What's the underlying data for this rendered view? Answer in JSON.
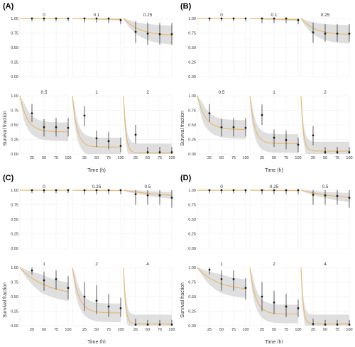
{
  "colors": {
    "panel_bg": "#ffffff",
    "grid": "#ebebeb",
    "band": "#d9d9d9",
    "line": "#e6b86a",
    "point": "#1a1a1a",
    "text": "#333333",
    "facet_label": "#333333"
  },
  "labels": {
    "y_axis": "Survival fraction",
    "x_axis": "Time (h)"
  },
  "chart_data": [
    {
      "panel": "(A)",
      "type": "line",
      "xlabel": "Time (h)",
      "ylabel": "Survival fraction",
      "xlim": [
        0,
        100
      ],
      "ylim": [
        0,
        1
      ],
      "yticks": [
        "0.00",
        "0.25",
        "0.50",
        "0.75",
        "1.00"
      ],
      "xticks": [
        "25",
        "50",
        "75",
        "100"
      ],
      "facets": [
        {
          "label": "0",
          "x": [
            25,
            50,
            75,
            100
          ],
          "y": [
            1.0,
            1.0,
            1.0,
            1.0
          ],
          "lo": [
            0.95,
            0.95,
            0.95,
            0.95
          ],
          "hi": [
            1.0,
            1.0,
            1.0,
            1.0
          ],
          "rate": 0.0,
          "floor": 1.0
        },
        {
          "label": "0.1",
          "x": [
            25,
            50,
            75,
            100
          ],
          "y": [
            1.0,
            1.0,
            1.0,
            0.97
          ],
          "lo": [
            0.93,
            0.93,
            0.92,
            0.9
          ],
          "hi": [
            1.0,
            1.0,
            1.0,
            1.0
          ],
          "rate": 0.0006,
          "floor": 0.9
        },
        {
          "label": "0.25",
          "x": [
            25,
            50,
            75,
            100
          ],
          "y": [
            0.77,
            0.74,
            0.73,
            0.73
          ],
          "lo": [
            0.58,
            0.55,
            0.55,
            0.55
          ],
          "hi": [
            0.95,
            0.93,
            0.92,
            0.92
          ],
          "rate": 0.01,
          "floor": 0.7
        },
        {
          "label": "0.5",
          "x": [
            25,
            50,
            75,
            100
          ],
          "y": [
            0.7,
            0.46,
            0.46,
            0.45
          ],
          "lo": [
            0.55,
            0.3,
            0.3,
            0.3
          ],
          "hi": [
            0.86,
            0.6,
            0.62,
            0.62
          ],
          "rate": 0.022,
          "floor": 0.38
        },
        {
          "label": "1",
          "x": [
            25,
            50,
            75,
            100
          ],
          "y": [
            0.66,
            0.27,
            0.22,
            0.14
          ],
          "lo": [
            0.48,
            0.12,
            0.08,
            0.03
          ],
          "hi": [
            0.82,
            0.4,
            0.38,
            0.28
          ],
          "rate": 0.035,
          "floor": 0.12
        },
        {
          "label": "2",
          "x": [
            25,
            50,
            75,
            100
          ],
          "y": [
            0.33,
            0.03,
            0.03,
            0.03
          ],
          "lo": [
            0.18,
            0.0,
            0.0,
            0.0
          ],
          "hi": [
            0.5,
            0.12,
            0.12,
            0.12
          ],
          "rate": 0.07,
          "floor": 0.02
        }
      ]
    },
    {
      "panel": "(B)",
      "type": "line",
      "xlabel": "Time (h)",
      "ylabel": "Survival fraction",
      "xlim": [
        0,
        100
      ],
      "ylim": [
        0,
        1
      ],
      "yticks": [
        "0.00",
        "0.25",
        "0.50",
        "0.75",
        "1.00"
      ],
      "xticks": [
        "25",
        "50",
        "75",
        "100"
      ],
      "facets": [
        {
          "label": "0",
          "x": [
            25,
            50,
            75,
            100
          ],
          "y": [
            1.0,
            1.0,
            1.0,
            1.0
          ],
          "lo": [
            0.95,
            0.95,
            0.95,
            0.95
          ],
          "hi": [
            1.0,
            1.0,
            1.0,
            1.0
          ],
          "rate": 0.0,
          "floor": 1.0
        },
        {
          "label": "0.1",
          "x": [
            25,
            50,
            75,
            100
          ],
          "y": [
            1.0,
            1.0,
            1.0,
            0.97
          ],
          "lo": [
            0.92,
            0.92,
            0.92,
            0.9
          ],
          "hi": [
            1.0,
            1.0,
            1.0,
            1.0
          ],
          "rate": 0.0008,
          "floor": 0.9
        },
        {
          "label": "0.25",
          "x": [
            25,
            50,
            75,
            100
          ],
          "y": [
            0.76,
            0.74,
            0.74,
            0.74
          ],
          "lo": [
            0.58,
            0.6,
            0.6,
            0.6
          ],
          "hi": [
            0.93,
            0.9,
            0.9,
            0.9
          ],
          "rate": 0.012,
          "floor": 0.72
        },
        {
          "label": "0.5",
          "x": [
            25,
            50,
            75,
            100
          ],
          "y": [
            0.7,
            0.46,
            0.46,
            0.45
          ],
          "lo": [
            0.55,
            0.3,
            0.3,
            0.3
          ],
          "hi": [
            0.86,
            0.6,
            0.62,
            0.62
          ],
          "rate": 0.02,
          "floor": 0.42
        },
        {
          "label": "1",
          "x": [
            25,
            50,
            75,
            100
          ],
          "y": [
            0.67,
            0.28,
            0.24,
            0.16
          ],
          "lo": [
            0.5,
            0.12,
            0.08,
            0.03
          ],
          "hi": [
            0.85,
            0.42,
            0.4,
            0.28
          ],
          "rate": 0.035,
          "floor": 0.18
        },
        {
          "label": "2",
          "x": [
            25,
            50,
            75,
            100
          ],
          "y": [
            0.32,
            0.03,
            0.03,
            0.03
          ],
          "lo": [
            0.15,
            0.0,
            0.0,
            0.0
          ],
          "hi": [
            0.48,
            0.12,
            0.12,
            0.12
          ],
          "rate": 0.07,
          "floor": 0.05
        }
      ]
    },
    {
      "panel": "(C)",
      "type": "line",
      "xlabel": "Time (h)",
      "ylabel": "Survival fraction",
      "xlim": [
        0,
        100
      ],
      "ylim": [
        0,
        1
      ],
      "yticks": [
        "0.00",
        "0.25",
        "0.50",
        "0.75",
        "1.00"
      ],
      "xticks": [
        "25",
        "50",
        "75",
        "100"
      ],
      "facets": [
        {
          "label": "0",
          "x": [
            25,
            50,
            75,
            100
          ],
          "y": [
            1.0,
            1.0,
            1.0,
            1.0
          ],
          "lo": [
            0.95,
            0.95,
            0.95,
            0.95
          ],
          "hi": [
            1.0,
            1.0,
            1.0,
            1.0
          ],
          "rate": 0.0,
          "floor": 1.0
        },
        {
          "label": "0.25",
          "x": [
            25,
            50,
            75,
            100
          ],
          "y": [
            1.0,
            1.0,
            1.0,
            1.0
          ],
          "lo": [
            0.93,
            0.93,
            0.93,
            0.93
          ],
          "hi": [
            1.0,
            1.0,
            1.0,
            1.0
          ],
          "rate": 0.0003,
          "floor": 0.95
        },
        {
          "label": "0.5",
          "x": [
            25,
            50,
            75,
            100
          ],
          "y": [
            0.93,
            0.91,
            0.91,
            0.87
          ],
          "lo": [
            0.75,
            0.75,
            0.75,
            0.7
          ],
          "hi": [
            1.0,
            1.0,
            1.0,
            1.0
          ],
          "rate": 0.003,
          "floor": 0.85
        },
        {
          "label": "1",
          "x": [
            25,
            50,
            75,
            100
          ],
          "y": [
            0.95,
            0.78,
            0.8,
            0.65
          ],
          "lo": [
            0.88,
            0.6,
            0.62,
            0.45
          ],
          "hi": [
            1.0,
            0.93,
            0.95,
            0.85
          ],
          "rate": 0.006,
          "floor": 0.5
        },
        {
          "label": "2",
          "x": [
            25,
            50,
            75,
            100
          ],
          "y": [
            0.5,
            0.43,
            0.33,
            0.3
          ],
          "lo": [
            0.25,
            0.2,
            0.15,
            0.15
          ],
          "hi": [
            0.75,
            0.7,
            0.55,
            0.48
          ],
          "rate": 0.025,
          "floor": 0.22
        },
        {
          "label": "4",
          "x": [
            25,
            50,
            75,
            100
          ],
          "y": [
            0.02,
            0.02,
            0.02,
            0.02
          ],
          "lo": [
            0.0,
            0.0,
            0.0,
            0.0
          ],
          "hi": [
            0.12,
            0.1,
            0.1,
            0.1
          ],
          "rate": 0.08,
          "floor": 0.03
        }
      ]
    },
    {
      "panel": "(D)",
      "type": "line",
      "xlabel": "Time (h)",
      "ylabel": "Survival fraction",
      "xlim": [
        0,
        100
      ],
      "ylim": [
        0,
        1
      ],
      "yticks": [
        "0.00",
        "0.25",
        "0.50",
        "0.75",
        "1.00"
      ],
      "xticks": [
        "25",
        "50",
        "75",
        "100"
      ],
      "facets": [
        {
          "label": "0",
          "x": [
            25,
            50,
            75,
            100
          ],
          "y": [
            1.0,
            1.0,
            1.0,
            1.0
          ],
          "lo": [
            0.95,
            0.95,
            0.95,
            0.95
          ],
          "hi": [
            1.0,
            1.0,
            1.0,
            1.0
          ],
          "rate": 0.0,
          "floor": 1.0
        },
        {
          "label": "0.25",
          "x": [
            25,
            50,
            75,
            100
          ],
          "y": [
            1.0,
            1.0,
            1.0,
            1.0
          ],
          "lo": [
            0.93,
            0.93,
            0.93,
            0.93
          ],
          "hi": [
            1.0,
            1.0,
            1.0,
            1.0
          ],
          "rate": 0.0003,
          "floor": 0.95
        },
        {
          "label": "0.5",
          "x": [
            25,
            50,
            75,
            100
          ],
          "y": [
            0.92,
            0.91,
            0.9,
            0.87
          ],
          "lo": [
            0.75,
            0.75,
            0.75,
            0.7
          ],
          "hi": [
            1.0,
            1.0,
            1.0,
            1.0
          ],
          "rate": 0.004,
          "floor": 0.82
        },
        {
          "label": "1",
          "x": [
            25,
            50,
            75,
            100
          ],
          "y": [
            0.96,
            0.8,
            0.8,
            0.65
          ],
          "lo": [
            0.88,
            0.6,
            0.6,
            0.45
          ],
          "hi": [
            1.0,
            0.95,
            0.95,
            0.82
          ],
          "rate": 0.008,
          "floor": 0.6
        },
        {
          "label": "2",
          "x": [
            25,
            50,
            75,
            100
          ],
          "y": [
            0.5,
            0.4,
            0.33,
            0.3
          ],
          "lo": [
            0.25,
            0.2,
            0.15,
            0.15
          ],
          "hi": [
            0.75,
            0.6,
            0.55,
            0.45
          ],
          "rate": 0.028,
          "floor": 0.2
        },
        {
          "label": "4",
          "x": [
            25,
            50,
            75,
            100
          ],
          "y": [
            0.03,
            0.02,
            0.02,
            0.02
          ],
          "lo": [
            0.0,
            0.0,
            0.0,
            0.0
          ],
          "hi": [
            0.12,
            0.1,
            0.1,
            0.1
          ],
          "rate": 0.08,
          "floor": 0.03
        }
      ]
    }
  ]
}
